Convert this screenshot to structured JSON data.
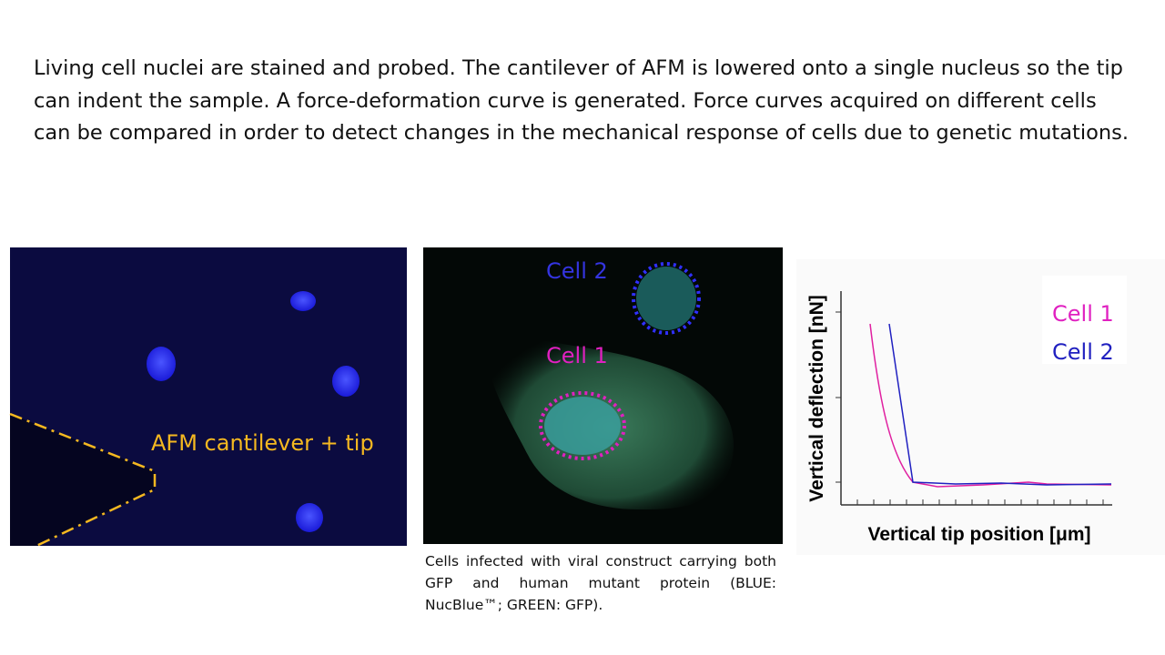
{
  "intro": "Living cell nuclei are stained and probed. The cantilever of AFM is lowered onto a single nucleus so the tip can indent the sample. A force-deformation curve is generated. Force curves acquired on different cells can be compared in order to detect changes in the mechanical response of cells due to genetic mutations.",
  "panels": {
    "afm_image": {
      "label": "AFM cantilever + tip"
    },
    "cells_image": {
      "cell_2": "Cell 2",
      "cell_1": "Cell 1",
      "caption": "Cells infected with viral construct carrying both GFP and human mutant protein (BLUE: NucBlue™; GREEN: GFP)."
    },
    "force_plot": {
      "legend": [
        "Cell 1",
        "Cell 2"
      ],
      "y_label": "Vertical deflection [nN]",
      "x_label": "Vertical tip position [μm]"
    }
  }
}
